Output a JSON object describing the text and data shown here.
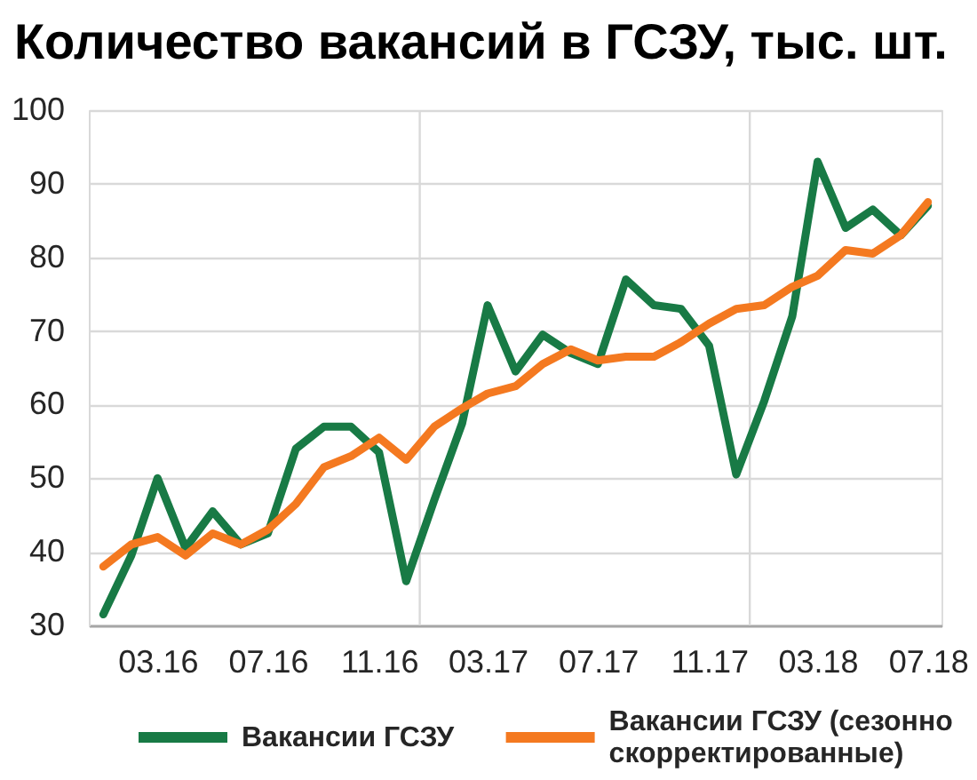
{
  "chart_data": {
    "type": "line",
    "title": "Количество вакансий в ГСЗУ, тыс. шт.",
    "x": [
      "2016-01",
      "2016-02",
      "2016-03",
      "2016-04",
      "2016-05",
      "2016-06",
      "2016-07",
      "2016-08",
      "2016-09",
      "2016-10",
      "2016-11",
      "2016-12",
      "2017-01",
      "2017-02",
      "2017-03",
      "2017-04",
      "2017-05",
      "2017-06",
      "2017-07",
      "2017-08",
      "2017-09",
      "2017-10",
      "2017-11",
      "2017-12",
      "2018-01",
      "2018-02",
      "2018-03",
      "2018-04",
      "2018-05",
      "2018-06",
      "2018-07"
    ],
    "series": [
      {
        "name": "Вакансии ГСЗУ",
        "color": "#187a45",
        "values": [
          31.5,
          39.5,
          50,
          40.5,
          45.5,
          41,
          42.5,
          54,
          57,
          57,
          53.5,
          36,
          47,
          57.5,
          73.5,
          64.5,
          69.5,
          67,
          65.5,
          77,
          73.5,
          73,
          68,
          50.5,
          60.5,
          72,
          93,
          84,
          86.5,
          83,
          87
        ]
      },
      {
        "name": "Вакансии ГСЗУ (сезонно скорректированные)",
        "color": "#f47920",
        "values": [
          38,
          41,
          42,
          39.5,
          42.5,
          41,
          43,
          46.5,
          51.5,
          53,
          55.5,
          52.5,
          57,
          59.5,
          61.5,
          62.5,
          65.5,
          67.5,
          66,
          66.5,
          66.5,
          68.5,
          71,
          73,
          73.5,
          76,
          77.5,
          81,
          80.5,
          83,
          87.5
        ]
      }
    ],
    "xlim": [
      "2015-12-16",
      "2018-07-16"
    ],
    "xticks": [
      {
        "value": "2016-03",
        "label": "03.16"
      },
      {
        "value": "2016-07",
        "label": "07.16"
      },
      {
        "value": "2016-11",
        "label": "11.16"
      },
      {
        "value": "2017-03",
        "label": "03.17"
      },
      {
        "value": "2017-07",
        "label": "07.17"
      },
      {
        "value": "2017-11",
        "label": "11.17"
      },
      {
        "value": "2018-03",
        "label": "03.18"
      },
      {
        "value": "2018-07",
        "label": "07.18"
      }
    ],
    "ylim": [
      30,
      100
    ],
    "yticks": [
      30,
      40,
      50,
      60,
      70,
      80,
      90,
      100
    ],
    "ref_lines": [
      {
        "axis": "x",
        "value": "2016-12-16",
        "color": "#d9d9d9"
      },
      {
        "axis": "x",
        "value": "2017-12-16",
        "color": "#d9d9d9"
      }
    ],
    "grid": "y",
    "legend": "bottom",
    "line_style": "solid"
  }
}
